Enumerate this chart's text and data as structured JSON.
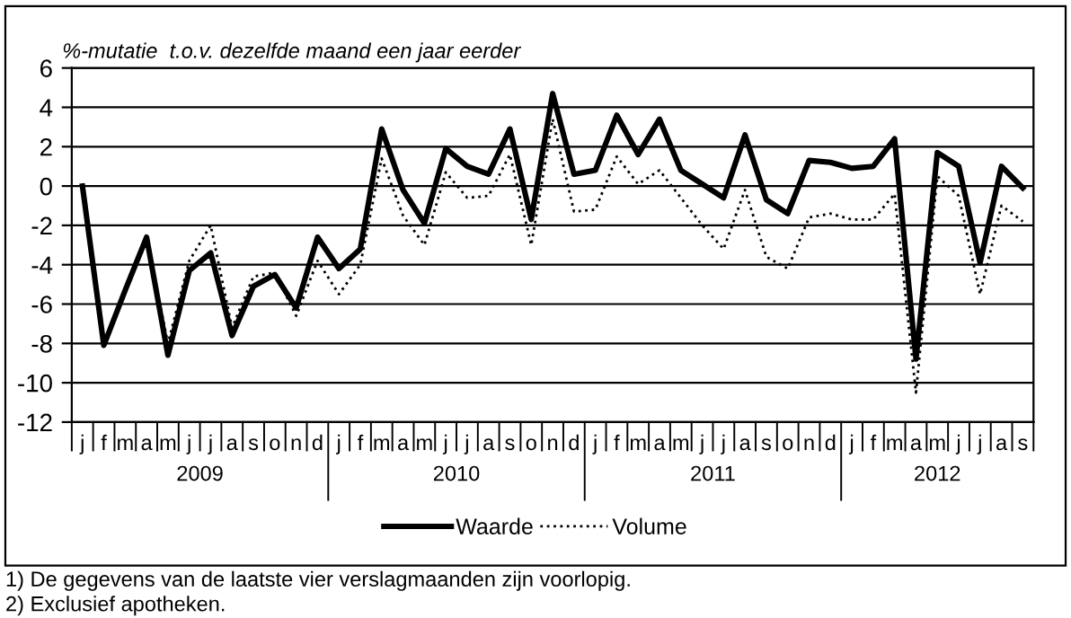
{
  "chart_data": {
    "type": "line",
    "title": "%-mutatie  t.o.v. dezelfde maand een jaar eerder",
    "categories": [
      "j",
      "f",
      "m",
      "a",
      "m",
      "j",
      "j",
      "a",
      "s",
      "o",
      "n",
      "d",
      "j",
      "f",
      "m",
      "a",
      "m",
      "j",
      "j",
      "a",
      "s",
      "o",
      "n",
      "d",
      "j",
      "f",
      "m",
      "a",
      "m",
      "j",
      "j",
      "a",
      "s",
      "o",
      "n",
      "d",
      "j",
      "f",
      "m",
      "a",
      "m",
      "j",
      "j",
      "a",
      "s"
    ],
    "series": [
      {
        "name": "Waarde",
        "color": "#000000",
        "line_style": "solid",
        "values": [
          0,
          -8.1,
          -5.3,
          -2.6,
          -8.6,
          -4.3,
          -3.4,
          -7.6,
          -5.1,
          -4.5,
          -6.2,
          -2.6,
          -4.2,
          -3.2,
          2.9,
          -0.2,
          -1.9,
          1.9,
          1.0,
          0.6,
          2.9,
          -1.7,
          4.7,
          0.6,
          0.8,
          3.6,
          1.6,
          3.4,
          0.8,
          0.1,
          -0.6,
          2.6,
          -0.7,
          -1.4,
          1.3,
          1.2,
          0.9,
          1.0,
          2.4,
          -8.8,
          1.7,
          1.0,
          -3.9,
          1.0,
          -0.1
        ]
      },
      {
        "name": "Volume",
        "color": "#000000",
        "line_style": "dotted",
        "values": [
          0,
          -8.1,
          -5.3,
          -2.6,
          -8.0,
          -3.8,
          -2.0,
          -7.2,
          -4.6,
          -4.4,
          -6.6,
          -3.8,
          -5.5,
          -4.0,
          1.4,
          -1.5,
          -3.0,
          0.7,
          -0.6,
          -0.5,
          1.6,
          -3.0,
          3.4,
          -1.3,
          -1.2,
          1.5,
          0.1,
          0.8,
          -0.6,
          -2.0,
          -3.2,
          -0.2,
          -3.6,
          -4.2,
          -1.6,
          -1.4,
          -1.7,
          -1.7,
          -0.4,
          -10.5,
          0.5,
          -0.5,
          -5.5,
          -1.0,
          -1.8
        ]
      }
    ],
    "ylim": [
      -12,
      6
    ],
    "yticks": [
      -12,
      -10,
      -8,
      -6,
      -4,
      -2,
      0,
      2,
      4,
      6
    ],
    "grid": "y",
    "legend": "bottom",
    "marker": "none",
    "annotations": [
      "2009",
      "2010",
      "2011",
      "2012",
      "1) De gegevens van de laatste vier verslagmaanden zijn voorlopig.",
      "2) Exclusief apotheken."
    ]
  }
}
